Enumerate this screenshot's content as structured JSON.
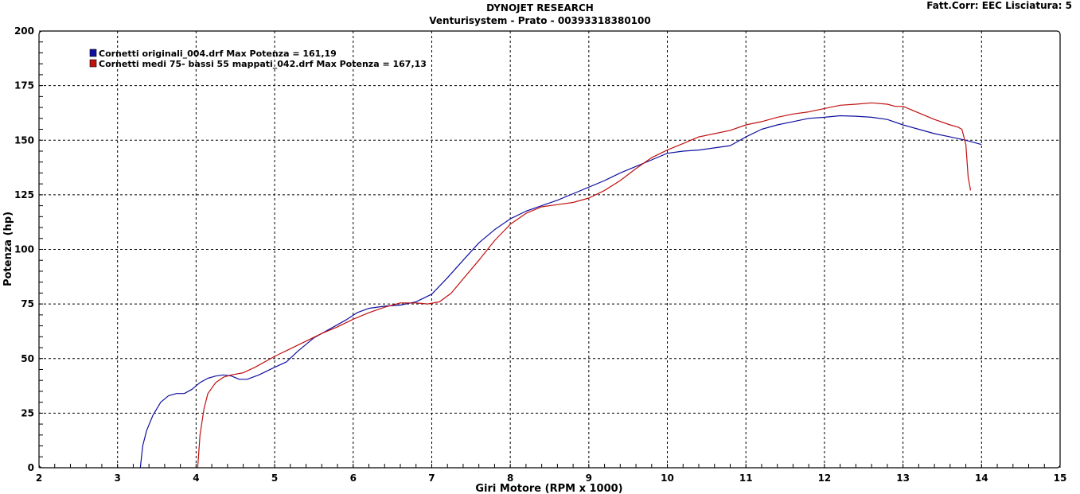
{
  "header": {
    "title": "DYNOJET RESEARCH",
    "subtitle": "Venturisystem - Prato - 00393318380100",
    "correction": "Fatt.Corr: EEC  Lisciatura: 5"
  },
  "colors": {
    "series1": "#1010a0",
    "series2": "#c01010",
    "grid": "#000000",
    "frame": "#000000"
  },
  "chart_data": {
    "type": "line",
    "xlabel": "Giri Motore (RPM x 1000)",
    "ylabel": "Potenza (hp)",
    "xlim": [
      2,
      15
    ],
    "ylim": [
      0,
      200
    ],
    "xticks": [
      2,
      3,
      4,
      5,
      6,
      7,
      8,
      9,
      10,
      11,
      12,
      13,
      14,
      15
    ],
    "yticks": [
      0,
      25,
      50,
      75,
      100,
      125,
      150,
      175,
      200
    ],
    "grid": true,
    "legend_position": "top-left",
    "series": [
      {
        "name": "Cornetti originali_004.drf Max Potenza = 161,19",
        "color": "#1010a0",
        "x": [
          3.29,
          3.32,
          3.37,
          3.45,
          3.55,
          3.65,
          3.75,
          3.85,
          3.95,
          4.05,
          4.15,
          4.25,
          4.35,
          4.45,
          4.55,
          4.65,
          4.8,
          5.0,
          5.15,
          5.3,
          5.5,
          5.7,
          5.9,
          6.05,
          6.2,
          6.4,
          6.6,
          6.8,
          7.0,
          7.2,
          7.4,
          7.6,
          7.8,
          8.0,
          8.2,
          8.4,
          8.6,
          8.8,
          9.0,
          9.2,
          9.4,
          9.6,
          9.8,
          10.0,
          10.2,
          10.4,
          10.6,
          10.8,
          11.0,
          11.2,
          11.4,
          11.6,
          11.8,
          12.0,
          12.2,
          12.4,
          12.6,
          12.8,
          13.0,
          13.2,
          13.4,
          13.6,
          13.8,
          14.0
        ],
        "y": [
          0,
          10,
          17,
          24,
          30,
          33,
          34,
          34,
          36,
          39,
          41,
          42,
          42.5,
          42,
          40.5,
          40.5,
          42.5,
          46,
          48.5,
          53.5,
          59.5,
          63.5,
          67.5,
          71,
          73,
          74,
          74.5,
          76,
          79.5,
          87,
          95,
          103,
          109,
          114,
          117.5,
          120,
          122.5,
          125.5,
          128.5,
          131.5,
          135,
          138,
          141,
          144,
          145,
          145.5,
          146.5,
          147.5,
          151.5,
          155,
          157,
          158.5,
          160,
          160.5,
          161.2,
          161,
          160.5,
          159.5,
          157,
          155,
          153,
          151.5,
          150,
          148
        ]
      },
      {
        "name": "Cornetti medi 75- bassi 55 mappati_042.drf Max Potenza = 167,13",
        "color": "#c01010",
        "x": [
          4.02,
          4.05,
          4.1,
          4.15,
          4.25,
          4.35,
          4.45,
          4.6,
          4.75,
          5.0,
          5.2,
          5.4,
          5.6,
          5.8,
          6.0,
          6.2,
          6.4,
          6.6,
          6.8,
          6.95,
          7.1,
          7.25,
          7.4,
          7.6,
          7.8,
          8.0,
          8.2,
          8.4,
          8.6,
          8.8,
          9.0,
          9.2,
          9.4,
          9.6,
          9.8,
          10.0,
          10.2,
          10.4,
          10.6,
          10.8,
          11.0,
          11.2,
          11.4,
          11.6,
          11.8,
          12.0,
          12.2,
          12.4,
          12.6,
          12.8,
          12.9,
          13.0,
          13.2,
          13.4,
          13.6,
          13.7,
          13.75,
          13.8,
          13.83,
          13.86
        ],
        "y": [
          0,
          15,
          27,
          34,
          39,
          41.5,
          42.5,
          43.5,
          46,
          51,
          54.5,
          58,
          61.5,
          64.5,
          68,
          71,
          73.5,
          75.5,
          75.5,
          75,
          76,
          80,
          86.5,
          95,
          104,
          111.5,
          116.5,
          119.5,
          120.5,
          121.5,
          123.5,
          127,
          131.5,
          137,
          142,
          145.5,
          148.5,
          151.5,
          153,
          154.5,
          157,
          158.5,
          160.5,
          162,
          163,
          164.5,
          166,
          166.5,
          167.1,
          166.5,
          165.5,
          165.5,
          162.5,
          159.5,
          157,
          156,
          155,
          148,
          133,
          127
        ]
      }
    ]
  }
}
